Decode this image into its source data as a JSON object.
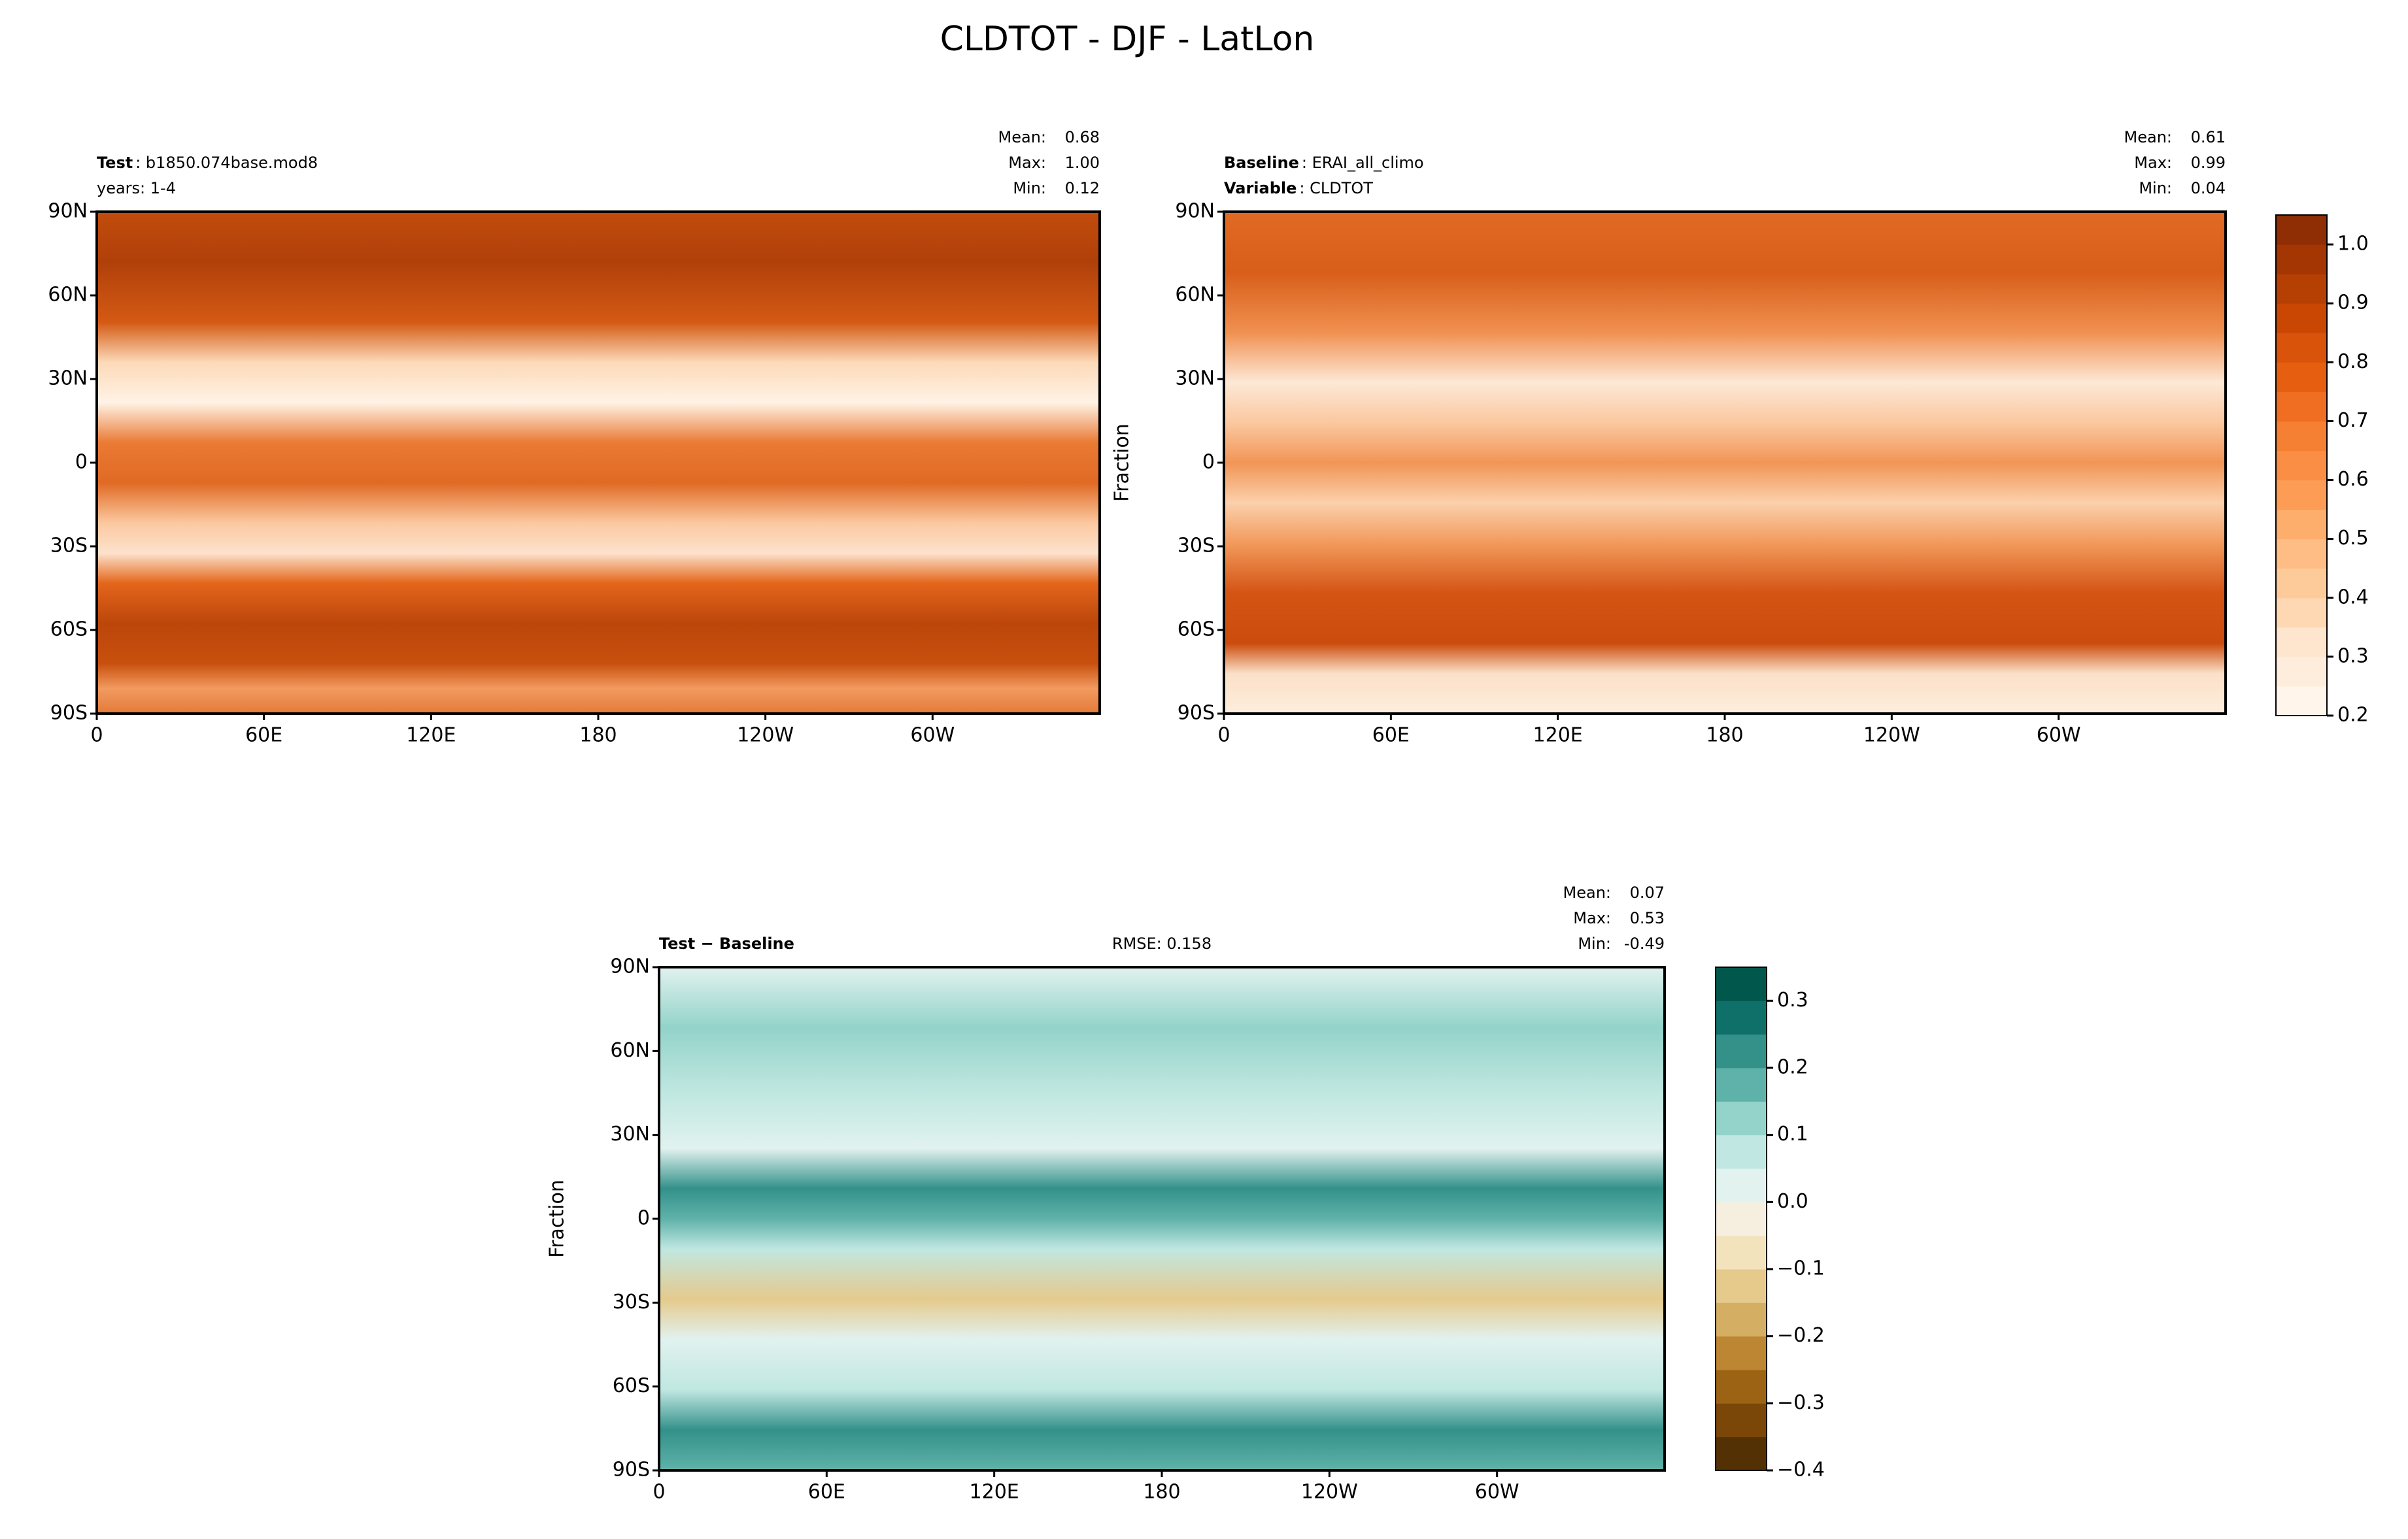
{
  "chart_data": [
    {
      "type": "map",
      "title": "CLDTOT - DJF - LatLon",
      "lines": [
        {
          "key": "Test",
          "text": ": b1850.074base.mod8"
        },
        {
          "text": "years: 1-4"
        }
      ],
      "stats": [
        {
          "label": "Mean:",
          "value": "0.68"
        },
        {
          "label": "Max:",
          "value": "1.00"
        },
        {
          "label": "Min:",
          "value": "0.12"
        }
      ],
      "xlim": [
        0,
        360
      ],
      "ylim": [
        -90,
        90
      ],
      "xticks": [
        0,
        {
          "value": 60,
          "label": "60E"
        },
        {
          "value": 120,
          "label": "120E"
        },
        180,
        {
          "value": 240,
          "label": "120W"
        },
        {
          "value": 300,
          "label": "60W"
        }
      ],
      "yticks": [
        {
          "value": 90,
          "label": "90N"
        },
        {
          "value": 60,
          "label": "60N"
        },
        {
          "value": 30,
          "label": "30N"
        },
        0,
        {
          "value": -30,
          "label": "30S"
        },
        {
          "value": -60,
          "label": "60S"
        },
        {
          "value": -90,
          "label": "90S"
        }
      ]
    },
    {
      "type": "map",
      "lines": [
        {
          "key": "Baseline",
          "text": ": ERAI_all_climo"
        },
        {
          "key": "Variable",
          "text": ": CLDTOT"
        }
      ],
      "stats": [
        {
          "label": "Mean:",
          "value": "0.61"
        },
        {
          "label": "Max:",
          "value": "0.99"
        },
        {
          "label": "Min:",
          "value": "0.04"
        }
      ],
      "ylabel": "Fraction",
      "xlim": [
        0,
        360
      ],
      "ylim": [
        -90,
        90
      ],
      "xticks": [
        0,
        {
          "value": 60,
          "label": "60E"
        },
        {
          "value": 120,
          "label": "120E"
        },
        180,
        {
          "value": 240,
          "label": "120W"
        },
        {
          "value": 300,
          "label": "60W"
        }
      ],
      "yticks": [
        {
          "value": 90,
          "label": "90N"
        },
        {
          "value": 60,
          "label": "60N"
        },
        {
          "value": 30,
          "label": "30N"
        },
        0,
        {
          "value": -30,
          "label": "30S"
        },
        {
          "value": -60,
          "label": "60S"
        },
        {
          "value": -90,
          "label": "90S"
        }
      ],
      "colorbar": {
        "lim": [
          0.2,
          1.05
        ],
        "ticks": [
          0.2,
          0.3,
          0.4,
          0.5,
          0.6,
          0.7,
          0.8,
          0.9,
          {
            "value": 1,
            "label": "1.0"
          }
        ],
        "colors": [
          "#fff5eb",
          "#feeddc",
          "#fee6ce",
          "#fdd8b3",
          "#fdcb9a",
          "#fdbd84",
          "#fdad6c",
          "#fd9d55",
          "#f98e44",
          "#f57f32",
          "#ef6e21",
          "#e65f11",
          "#da530a",
          "#ca4703",
          "#b63f03",
          "#a43603",
          "#8f2d04"
        ]
      }
    },
    {
      "type": "map",
      "lines": [
        {
          "key": "Test − Baseline"
        }
      ],
      "rmse": "RMSE: 0.158",
      "stats": [
        {
          "label": "Mean:",
          "value": "0.07"
        },
        {
          "label": "Max:",
          "value": "0.53"
        },
        {
          "label": "Min:",
          "value": "-0.49"
        }
      ],
      "ylabel": "Fraction",
      "xlim": [
        0,
        360
      ],
      "ylim": [
        -90,
        90
      ],
      "xticks": [
        0,
        {
          "value": 60,
          "label": "60E"
        },
        {
          "value": 120,
          "label": "120E"
        },
        180,
        {
          "value": 240,
          "label": "120W"
        },
        {
          "value": 300,
          "label": "60W"
        }
      ],
      "yticks": [
        {
          "value": 90,
          "label": "90N"
        },
        {
          "value": 60,
          "label": "60N"
        },
        {
          "value": 30,
          "label": "30N"
        },
        0,
        {
          "value": -30,
          "label": "30S"
        },
        {
          "value": -60,
          "label": "60S"
        },
        {
          "value": -90,
          "label": "90S"
        }
      ],
      "colorbar": {
        "lim": [
          -0.4,
          0.35
        ],
        "ticks": [
          {
            "value": -0.4,
            "label": "−0.4"
          },
          {
            "value": -0.3,
            "label": "−0.3"
          },
          {
            "value": -0.2,
            "label": "−0.2"
          },
          {
            "value": -0.1,
            "label": "−0.1"
          },
          {
            "value": 0,
            "label": "0.0"
          },
          0.1,
          0.2,
          0.3
        ],
        "colors": [
          "#543005",
          "#7a4709",
          "#9d6314",
          "#bc8632",
          "#d4ae62",
          "#e5ca8c",
          "#f3e3bd",
          "#f6eedf",
          "#e1f2ef",
          "#c0e7e1",
          "#93d3c9",
          "#5fb2a9",
          "#33918a",
          "#0f7069",
          "#01574c"
        ]
      }
    }
  ]
}
